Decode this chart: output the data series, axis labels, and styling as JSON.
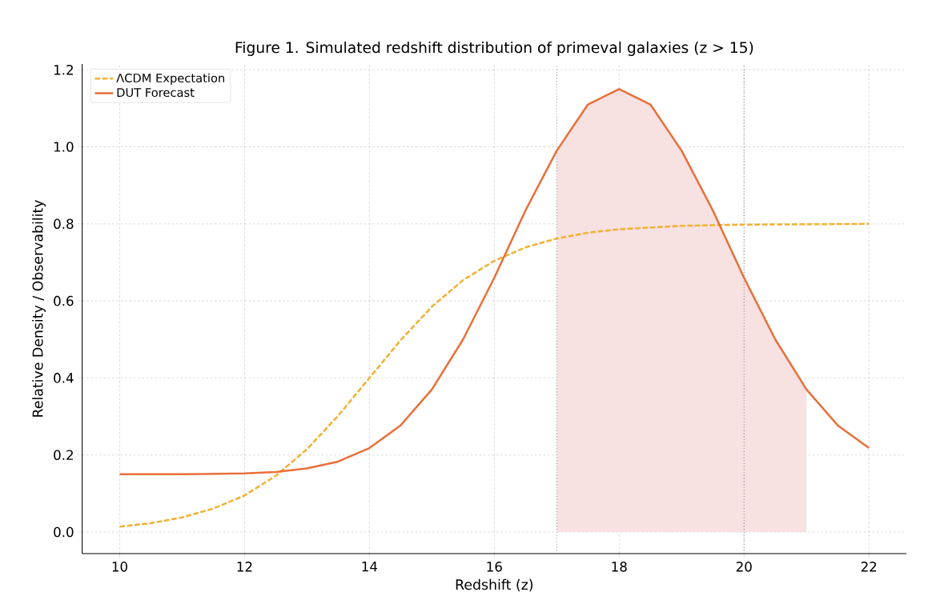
{
  "chart_data": {
    "type": "line",
    "title": "Figure 1. Simulated redshift distribution of primeval galaxies (z > 15)",
    "xlabel": "Redshift (z)",
    "ylabel": "Relative Density / Observability",
    "xlim": [
      9.4,
      22.6
    ],
    "ylim": [
      -0.056,
      1.215
    ],
    "xticks": [
      10,
      12,
      14,
      16,
      18,
      20,
      22
    ],
    "yticks": [
      {
        "value": 0,
        "label": "0.0"
      },
      {
        "value": 0.2,
        "label": "0.2"
      },
      {
        "value": 0.4,
        "label": "0.4"
      },
      {
        "value": 0.6,
        "label": "0.6"
      },
      {
        "value": 0.8,
        "label": "0.8"
      },
      {
        "value": 1.0,
        "label": "1.0"
      },
      {
        "value": 1.2,
        "label": "1.2"
      }
    ],
    "grid": true,
    "legend": "top left",
    "ref_lines": [
      {
        "axis": "x",
        "value": 17,
        "color": "#808080",
        "line_style": "dotted"
      },
      {
        "axis": "x",
        "value": 20,
        "color": "#808080",
        "line_style": "dotted"
      }
    ],
    "series": [
      {
        "type": "area",
        "color": "#f7e1e1",
        "x": [
          17,
          17.5,
          18,
          18.5,
          19,
          19.5,
          20,
          20.5,
          21
        ],
        "values": [
          0.99,
          1.11,
          1.15,
          1.11,
          0.99,
          0.84,
          0.66,
          0.5,
          0.37
        ]
      },
      {
        "name": "ΛCDM Expectation",
        "color": "#f2b134",
        "line_style": "dashed",
        "x": [
          10,
          10.5,
          11,
          11.5,
          12,
          12.5,
          13,
          13.5,
          14,
          14.5,
          15,
          15.5,
          16,
          16.5,
          17,
          17.5,
          18,
          19,
          20,
          21,
          22
        ],
        "values": [
          0.014,
          0.023,
          0.038,
          0.061,
          0.095,
          0.146,
          0.215,
          0.302,
          0.4,
          0.498,
          0.585,
          0.654,
          0.704,
          0.739,
          0.762,
          0.777,
          0.786,
          0.795,
          0.798,
          0.799,
          0.8
        ]
      },
      {
        "name": "DUT Forecast",
        "color": "#e8703a",
        "line_style": "solid",
        "x": [
          10,
          10.5,
          11,
          11.5,
          12,
          12.5,
          13,
          13.5,
          14,
          14.5,
          15,
          15.5,
          16,
          16.5,
          17,
          17.5,
          18,
          18.5,
          19,
          19.5,
          20,
          20.5,
          21,
          21.5,
          22
        ],
        "values": [
          0.15,
          0.15,
          0.15,
          0.151,
          0.152,
          0.156,
          0.165,
          0.183,
          0.218,
          0.277,
          0.37,
          0.5,
          0.66,
          0.835,
          0.99,
          1.11,
          1.15,
          1.11,
          0.99,
          0.835,
          0.66,
          0.5,
          0.37,
          0.277,
          0.218
        ]
      }
    ]
  }
}
